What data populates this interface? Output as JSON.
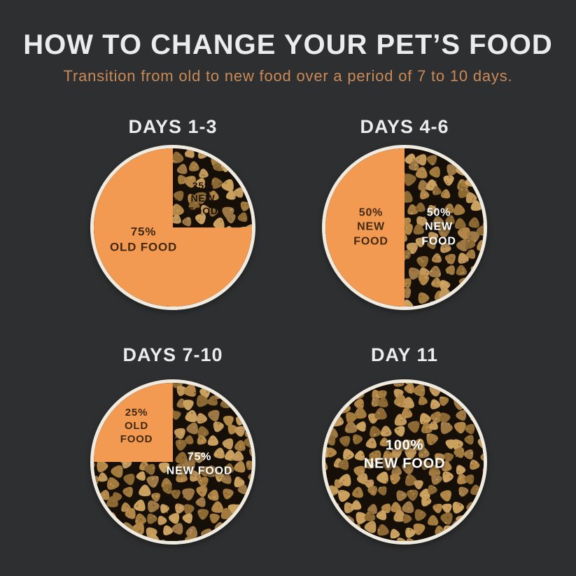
{
  "page": {
    "title": "HOW TO CHANGE YOUR PET’S FOOD",
    "subtitle": "Transition from old to new food over a period of 7 to 10 days."
  },
  "colors": {
    "background": "#2e2f30",
    "title_text": "#ececec",
    "subtitle_text": "#c98a58",
    "orange_fill": "#f29a52",
    "bowl_ring": "#f0ebe0",
    "kibble_gap": "#160f08",
    "kibble_palette": [
      "#b18647",
      "#a27a3d",
      "#c2975a",
      "#8c6832",
      "#9d7845",
      "#c9a05e"
    ],
    "kibble_speckle_light": "#e6c98f",
    "kibble_speckle_dark": "#54391a",
    "label_dark_on_orange": "#42290f",
    "label_dark_on_kibble": "#1d1207",
    "label_light": "#ffffff"
  },
  "bowls": [
    {
      "heading": "DAYS 1-3",
      "labels": [
        {
          "lines": [
            "25%",
            "NEW",
            "FOOD"
          ]
        },
        {
          "lines": [
            "75%",
            "OLD FOOD"
          ]
        }
      ]
    },
    {
      "heading": "DAYS 4-6",
      "labels": [
        {
          "lines": [
            "50%",
            "NEW",
            "FOOD"
          ]
        },
        {
          "lines": [
            "50%",
            "NEW",
            "FOOD"
          ]
        }
      ]
    },
    {
      "heading": "DAYS 7-10",
      "labels": [
        {
          "lines": [
            "25%",
            "OLD",
            "FOOD"
          ]
        },
        {
          "lines": [
            "75%",
            "NEW FOOD"
          ]
        }
      ]
    },
    {
      "heading": "DAY 11",
      "labels": [
        {
          "lines": [
            "100%",
            "NEW FOOD"
          ]
        }
      ]
    }
  ],
  "chart_data": [
    {
      "type": "pie",
      "title": "DAYS 1-3",
      "slices": [
        {
          "label": "OLD FOOD",
          "percent": 75,
          "fill": "solid-orange",
          "data_label": "75% OLD FOOD"
        },
        {
          "label": "NEW FOOD",
          "percent": 25,
          "fill": "kibble-photo",
          "data_label": "25% NEW FOOD",
          "wedge_position": "top-right-quadrant"
        }
      ]
    },
    {
      "type": "pie",
      "title": "DAYS 4-6",
      "slices": [
        {
          "label": "NEW FOOD",
          "percent": 50,
          "fill": "solid-orange",
          "data_label": "50% NEW FOOD",
          "wedge_position": "left-half"
        },
        {
          "label": "NEW FOOD",
          "percent": 50,
          "fill": "kibble-photo",
          "data_label": "50% NEW FOOD",
          "wedge_position": "right-half"
        }
      ]
    },
    {
      "type": "pie",
      "title": "DAYS 7-10",
      "slices": [
        {
          "label": "OLD FOOD",
          "percent": 25,
          "fill": "solid-orange",
          "data_label": "25% OLD FOOD",
          "wedge_position": "top-left-quadrant"
        },
        {
          "label": "NEW FOOD",
          "percent": 75,
          "fill": "kibble-photo",
          "data_label": "75% NEW FOOD"
        }
      ]
    },
    {
      "type": "pie",
      "title": "DAY 11",
      "slices": [
        {
          "label": "NEW FOOD",
          "percent": 100,
          "fill": "kibble-photo",
          "data_label": "100% NEW FOOD"
        }
      ]
    }
  ]
}
